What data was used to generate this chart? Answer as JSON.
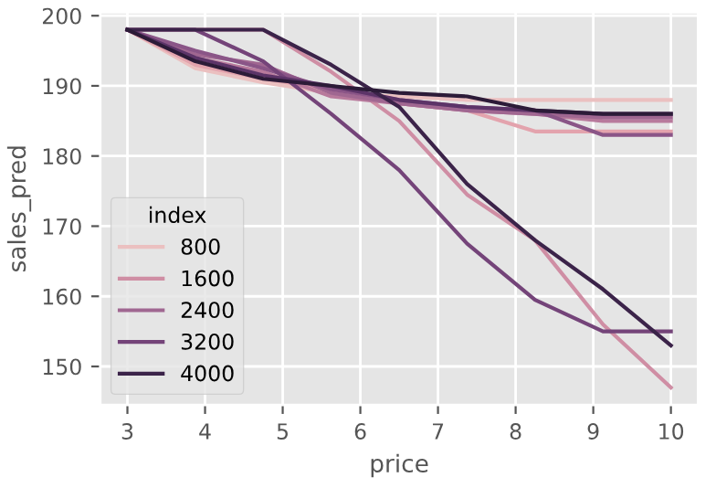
{
  "chart_data": {
    "type": "line",
    "xlabel": "price",
    "ylabel": "sales_pred",
    "legend_title": "index",
    "legend": "bottom left",
    "grid": true,
    "x": [
      3,
      3.875,
      4.75,
      5.625,
      6.5,
      7.375,
      8.25,
      9.125,
      10
    ],
    "xlim": [
      2.65,
      10.35
    ],
    "xticks": [
      3,
      4,
      5,
      6,
      7,
      8,
      9,
      10
    ],
    "ylim": [
      144.5,
      200.5
    ],
    "yticks": [
      150,
      160,
      170,
      180,
      190,
      200
    ],
    "series": [
      {
        "name": "800",
        "color": "#ebc0c0",
        "values": [
          198,
          192.5,
          190.5,
          189,
          188.5,
          188,
          188,
          188,
          188
        ]
      },
      {
        "color": "#e3a3ad",
        "values": [
          198,
          193,
          191,
          189.5,
          187.5,
          186.5,
          183.5,
          183.5,
          183.5
        ]
      },
      {
        "name": "1600",
        "color": "#cf8ea4",
        "values": [
          198,
          198,
          198,
          192,
          185,
          174.5,
          168,
          156,
          147
        ]
      },
      {
        "color": "#b87a9c",
        "values": [
          198,
          194,
          192,
          188.5,
          187.5,
          186.5,
          186,
          185,
          185
        ]
      },
      {
        "name": "2400",
        "color": "#a06791",
        "values": [
          198,
          194.5,
          193,
          189,
          187.5,
          186.5,
          186,
          185.5,
          185.5
        ]
      },
      {
        "color": "#8a5587",
        "values": [
          198,
          195,
          192.5,
          189.5,
          188,
          187,
          186.5,
          183,
          183
        ]
      },
      {
        "name": "3200",
        "color": "#744479",
        "values": [
          198,
          198,
          193.5,
          186,
          178,
          167.5,
          159.5,
          155,
          155
        ]
      },
      {
        "color": "#5c3468",
        "values": [
          198,
          194,
          191.5,
          190,
          188,
          187,
          186.5,
          186,
          186
        ]
      },
      {
        "name": "4000",
        "color": "#3b2349",
        "values": [
          198,
          198,
          198,
          193,
          187,
          176,
          168,
          161,
          153
        ]
      },
      {
        "color": "#2c1b38",
        "values": [
          198,
          193.5,
          191,
          190,
          189,
          188.5,
          186.5,
          186,
          186
        ]
      }
    ]
  }
}
